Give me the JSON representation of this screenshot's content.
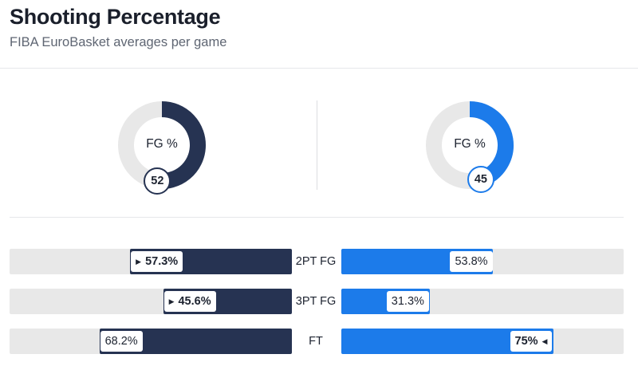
{
  "header": {
    "title": "Shooting Percentage",
    "subtitle": "FIBA EuroBasket averages per game"
  },
  "colors": {
    "left_team": "#263352",
    "right_team": "#1c7bea",
    "track": "#e8e8e8"
  },
  "chart_data": [
    {
      "type": "pie",
      "variant": "donut",
      "label": "FG %",
      "teams": [
        {
          "side": "left",
          "value": 52,
          "color": "#263352"
        },
        {
          "side": "right",
          "value": 45,
          "color": "#1c7bea"
        }
      ]
    },
    {
      "type": "bar",
      "orientation": "horizontal-diverging",
      "xlim": [
        0,
        100
      ],
      "rows": [
        {
          "label": "2PT FG",
          "left": 57.3,
          "left_text": "57.3%",
          "right": 53.8,
          "right_text": "53.8%",
          "leader": "left"
        },
        {
          "label": "3PT FG",
          "left": 45.6,
          "left_text": "45.6%",
          "right": 31.3,
          "right_text": "31.3%",
          "leader": "left"
        },
        {
          "label": "FT",
          "left": 68.2,
          "left_text": "68.2%",
          "right": 75,
          "right_text": "75%",
          "leader": "right"
        }
      ]
    }
  ]
}
